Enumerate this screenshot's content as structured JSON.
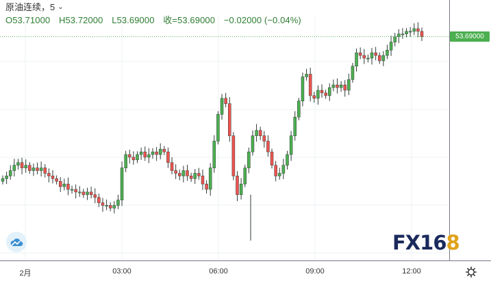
{
  "legend": {
    "symbol": "原油连续，5",
    "chevron": "⌄",
    "open": "O53.71000",
    "high": "H53.72000",
    "low": "L53.69000",
    "close": "收=53.69000",
    "change": "−0.02000 (−0.04%)"
  },
  "price_axis": {
    "last_price_label": "53.69000"
  },
  "time_axis": {
    "labels": [
      "2月",
      "03:00",
      "06:00",
      "09:00",
      "12:00"
    ]
  },
  "brand": {
    "text_main": "FX16",
    "text_accent": "8"
  },
  "icons": {
    "logo": "cloud-logo-icon",
    "settings": "gear-icon"
  },
  "colors": {
    "up": "#4caf50",
    "down": "#ef5350",
    "body_dark": "#2f4f3f",
    "grid": "#eef0f3",
    "price_line": "#4caf50",
    "axis_border": "#787b86"
  },
  "chart_data": {
    "type": "candlestick",
    "title": "原油连续，5",
    "interval_minutes": 5,
    "y_axis_labels_shown": [
      "53.69000"
    ],
    "last": {
      "open": 53.71,
      "high": 53.72,
      "low": 53.69,
      "close": 53.69,
      "change": -0.02,
      "change_pct": -0.04
    },
    "closes": [
      53.16,
      53.17,
      53.19,
      53.21,
      53.22,
      53.2,
      53.21,
      53.19,
      53.2,
      53.19,
      53.2,
      53.18,
      53.17,
      53.16,
      53.15,
      53.13,
      53.14,
      53.12,
      53.12,
      53.11,
      53.11,
      53.1,
      53.11,
      53.1,
      53.09,
      53.07,
      53.06,
      53.06,
      53.05,
      53.06,
      53.08,
      53.2,
      53.25,
      53.24,
      53.23,
      53.25,
      53.26,
      53.24,
      53.25,
      53.26,
      53.25,
      53.27,
      53.26,
      53.22,
      53.19,
      53.18,
      53.17,
      53.19,
      53.17,
      53.16,
      53.18,
      53.17,
      53.14,
      53.12,
      53.2,
      53.3,
      53.4,
      53.46,
      53.44,
      53.32,
      53.17,
      53.1,
      53.14,
      53.2,
      53.26,
      53.32,
      53.34,
      53.32,
      53.3,
      53.26,
      53.21,
      53.17,
      53.18,
      53.21,
      53.25,
      53.32,
      53.39,
      53.45,
      53.54,
      53.55,
      53.47,
      53.46,
      53.49,
      53.48,
      53.47,
      53.5,
      53.51,
      53.5,
      53.51,
      53.49,
      53.53,
      53.58,
      53.63,
      53.62,
      53.61,
      53.61,
      53.63,
      53.62,
      53.6,
      53.62,
      53.64,
      53.67,
      53.69,
      53.7,
      53.7,
      53.71,
      53.71,
      53.72,
      53.71,
      53.69
    ]
  }
}
